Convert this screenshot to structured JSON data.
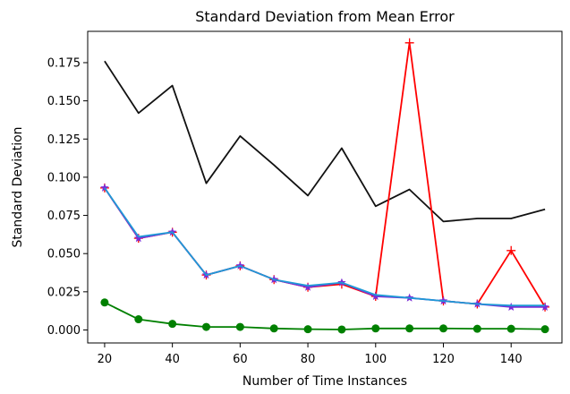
{
  "chart_data": {
    "type": "line",
    "title": "Standard Deviation from Mean Error",
    "xlabel": "Number of Time Instances",
    "ylabel": "Standard Deviation",
    "xlim": [
      15,
      155
    ],
    "ylim": [
      -0.0085,
      0.1955
    ],
    "xticks": [
      20,
      40,
      60,
      80,
      100,
      120,
      140
    ],
    "xtick_labels": [
      "20",
      "40",
      "60",
      "80",
      "100",
      "120",
      "140"
    ],
    "yticks": [
      0.0,
      0.025,
      0.05,
      0.075,
      0.1,
      0.125,
      0.15,
      0.175
    ],
    "ytick_labels": [
      "0.000",
      "0.025",
      "0.050",
      "0.075",
      "0.100",
      "0.125",
      "0.150",
      "0.175"
    ],
    "grid": false,
    "legend": "none",
    "x": [
      20,
      30,
      40,
      50,
      60,
      70,
      80,
      90,
      100,
      110,
      120,
      130,
      140,
      150
    ],
    "series": [
      {
        "color": "#111111",
        "marker": "none",
        "values": [
          0.176,
          0.142,
          0.16,
          0.096,
          0.127,
          0.108,
          0.088,
          0.119,
          0.081,
          0.092,
          0.071,
          0.073,
          0.073,
          0.079
        ]
      },
      {
        "color": "#ff0000",
        "marker": "plus",
        "values": [
          0.093,
          0.06,
          0.064,
          0.036,
          0.042,
          0.033,
          0.028,
          0.03,
          0.022,
          0.188,
          0.019,
          0.017,
          0.052,
          0.015
        ]
      },
      {
        "color": "#7b2bd6",
        "marker": "star",
        "values": [
          0.093,
          0.06,
          0.064,
          0.036,
          0.042,
          0.033,
          0.028,
          0.031,
          0.022,
          0.021,
          0.019,
          0.017,
          0.015,
          0.015
        ]
      },
      {
        "color": "#1f9ad6",
        "marker": "none",
        "values": [
          0.093,
          0.061,
          0.064,
          0.036,
          0.042,
          0.033,
          0.029,
          0.031,
          0.023,
          0.021,
          0.019,
          0.017,
          0.016,
          0.016
        ]
      },
      {
        "color": "#008000",
        "marker": "circle",
        "values": [
          0.018,
          0.007,
          0.004,
          0.002,
          0.002,
          0.001,
          0.0005,
          0.0003,
          0.001,
          0.001,
          0.001,
          0.0008,
          0.0008,
          0.0005
        ]
      }
    ]
  }
}
